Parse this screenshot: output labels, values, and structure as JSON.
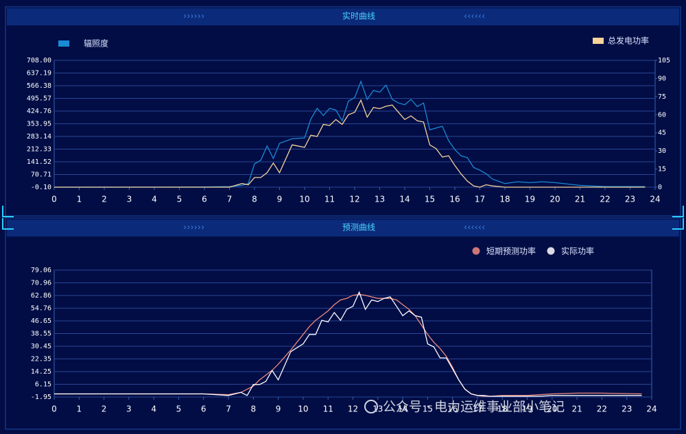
{
  "chart_data": [
    {
      "type": "line",
      "title": "实时曲线",
      "x": [
        0,
        6,
        7,
        7.5,
        7.75,
        8,
        8.25,
        8.5,
        8.75,
        9,
        9.5,
        10,
        10.25,
        10.5,
        10.75,
        11,
        11.25,
        11.5,
        11.75,
        12,
        12.25,
        12.5,
        12.75,
        13,
        13.25,
        13.5,
        13.75,
        14,
        14.25,
        14.5,
        14.75,
        15,
        15.25,
        15.5,
        15.75,
        16,
        16.25,
        16.5,
        16.75,
        17,
        17.25,
        17.5,
        18,
        18.5,
        19,
        19.5,
        20,
        21,
        22,
        23.6
      ],
      "xlim": [
        0,
        24
      ],
      "xticks": [
        0,
        1,
        2,
        3,
        4,
        5,
        6,
        7,
        8,
        9,
        10,
        11,
        12,
        13,
        14,
        15,
        16,
        17,
        18,
        19,
        20,
        21,
        22,
        23,
        24
      ],
      "ylim": [
        -0.1,
        708
      ],
      "yticks": [
        {
          "value": -0.1,
          "label": "-0.10"
        },
        70.71,
        141.52,
        212.33,
        283.14,
        353.95,
        424.76,
        495.57,
        566.38,
        637.19,
        {
          "value": 708,
          "label": "708.00"
        }
      ],
      "y2lim": [
        0,
        105
      ],
      "y2ticks": [
        0,
        15,
        30,
        45,
        60,
        75,
        90,
        105
      ],
      "grid": true,
      "series": [
        {
          "name": "辐照度",
          "color": "#1a8ad4",
          "values": [
            0,
            1,
            3,
            10,
            20,
            130,
            150,
            230,
            160,
            245,
            270,
            275,
            380,
            440,
            400,
            440,
            430,
            370,
            480,
            500,
            590,
            490,
            540,
            530,
            570,
            490,
            470,
            460,
            490,
            450,
            470,
            320,
            330,
            340,
            260,
            210,
            175,
            165,
            110,
            95,
            75,
            45,
            20,
            30,
            25,
            30,
            25,
            10,
            3,
            3
          ]
        },
        {
          "name": "总发电功率",
          "color": "#f7d49a",
          "axis": "y2",
          "values": [
            0,
            0,
            0,
            3,
            2,
            8,
            8,
            12,
            20,
            12,
            35,
            33,
            43,
            42,
            52,
            51,
            56,
            52,
            60,
            62,
            72,
            58,
            66,
            65,
            67,
            68,
            62,
            56,
            59,
            55,
            54,
            35,
            32,
            25,
            26,
            18,
            11,
            5,
            1,
            0,
            2,
            1,
            0,
            0,
            0,
            0,
            0,
            0,
            0,
            0
          ]
        }
      ]
    },
    {
      "type": "line",
      "title": "预测曲线",
      "x": [
        0,
        6,
        7,
        7.5,
        7.75,
        8,
        8.25,
        8.5,
        8.75,
        9,
        9.5,
        10,
        10.25,
        10.5,
        10.75,
        11,
        11.25,
        11.5,
        11.75,
        12,
        12.25,
        12.5,
        12.75,
        13,
        13.25,
        13.5,
        13.75,
        14,
        14.25,
        14.5,
        14.75,
        15,
        15.25,
        15.5,
        15.75,
        16,
        16.25,
        16.5,
        16.75,
        17,
        17.25,
        17.5,
        18,
        18.5,
        19,
        19.5,
        20,
        21,
        22,
        23.6
      ],
      "xlim": [
        0,
        24
      ],
      "xticks": [
        0,
        1,
        2,
        3,
        4,
        5,
        6,
        7,
        8,
        9,
        10,
        11,
        12,
        13,
        14,
        15,
        16,
        17,
        18,
        19,
        20,
        21,
        22,
        23,
        24
      ],
      "ylim": [
        -1.95,
        79.06
      ],
      "yticks": [
        -1.95,
        6.15,
        14.25,
        22.35,
        30.45,
        38.55,
        46.65,
        54.76,
        62.86,
        70.96,
        79.06
      ],
      "grid": true,
      "series": [
        {
          "name": "短期预测功率",
          "color": "#f08a80",
          "values": [
            0,
            0,
            -0.5,
            1,
            3,
            5,
            9,
            12,
            15,
            19,
            28,
            38,
            43,
            47,
            50,
            53,
            57,
            60,
            61,
            63,
            63.5,
            63,
            62,
            61,
            61,
            61,
            60,
            57,
            54,
            50,
            44,
            38,
            33,
            29,
            24,
            17,
            9,
            3,
            0,
            -1,
            -1.5,
            -1.5,
            -1,
            -1,
            -1,
            -0.5,
            0,
            0.5,
            0.5,
            0
          ]
        },
        {
          "name": "实际功率",
          "color": "#ffffff",
          "values": [
            0,
            0,
            -1,
            1,
            -1,
            6,
            6,
            8,
            15,
            9,
            27,
            32,
            38,
            38,
            47,
            46,
            52,
            47,
            54,
            56,
            65,
            54,
            60,
            59,
            61,
            62,
            56,
            50,
            53,
            50,
            49,
            32,
            30,
            23,
            23,
            16,
            9,
            3,
            0,
            -1,
            -1,
            -1.5,
            -1.5,
            -1.5,
            -1.5,
            -1.5,
            -1,
            -1,
            -1,
            -1
          ]
        }
      ]
    }
  ],
  "watermark": "公众号 · 电力运维事业部小笔记"
}
